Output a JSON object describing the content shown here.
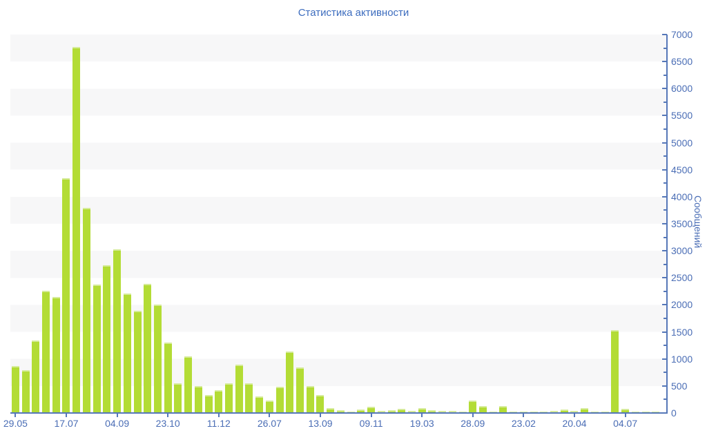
{
  "title": "Статистика активности",
  "colors": {
    "title_text": "#3c6cbe",
    "tick_text": "#4a6db5",
    "axis_line": "#5577b8",
    "band": "#f7f7f8",
    "background": "#ffffff",
    "bar": "#b3dc35",
    "bar_cap": "#d6eb9b"
  },
  "y_axis": {
    "title": "Сообщений",
    "min": 0,
    "max": 7000,
    "major_step": 500,
    "minor_step": 250,
    "tick_labels": [
      "0",
      "500",
      "1000",
      "1500",
      "2000",
      "2500",
      "3000",
      "3500",
      "4000",
      "4500",
      "5000",
      "5500",
      "6000",
      "6500",
      "7000"
    ]
  },
  "x_axis": {
    "tick_labels": [
      "29.05",
      "17.07",
      "04.09",
      "23.10",
      "11.12",
      "26.07",
      "13.09",
      "09.11",
      "19.03",
      "28.09",
      "23.02",
      "20.04",
      "04.07"
    ],
    "ticks_every_n_bars": 5
  },
  "chart_data": {
    "type": "bar",
    "title": "Статистика активности",
    "ylabel": "Сообщений",
    "ylim": [
      0,
      7000
    ],
    "grid": "horizontal-bands",
    "legend": "none",
    "categories": [
      "29.05",
      "17.07",
      "04.09",
      "23.10",
      "11.12",
      "26.07",
      "13.09",
      "09.11",
      "19.03",
      "28.09",
      "23.02",
      "20.04",
      "04.07"
    ],
    "values": [
      870,
      790,
      1345,
      2260,
      2150,
      4340,
      6770,
      3800,
      2370,
      2730,
      3030,
      2210,
      1890,
      2390,
      2000,
      1300,
      550,
      1045,
      495,
      335,
      425,
      555,
      900,
      545,
      310,
      230,
      485,
      1140,
      840,
      500,
      335,
      95,
      45,
      25,
      60,
      115,
      35,
      50,
      80,
      40,
      95,
      50,
      35,
      42,
      30,
      230,
      130,
      25,
      130,
      17,
      20,
      17,
      25,
      38,
      70,
      40,
      95,
      30,
      20,
      1535,
      80,
      15,
      15,
      15
    ]
  }
}
